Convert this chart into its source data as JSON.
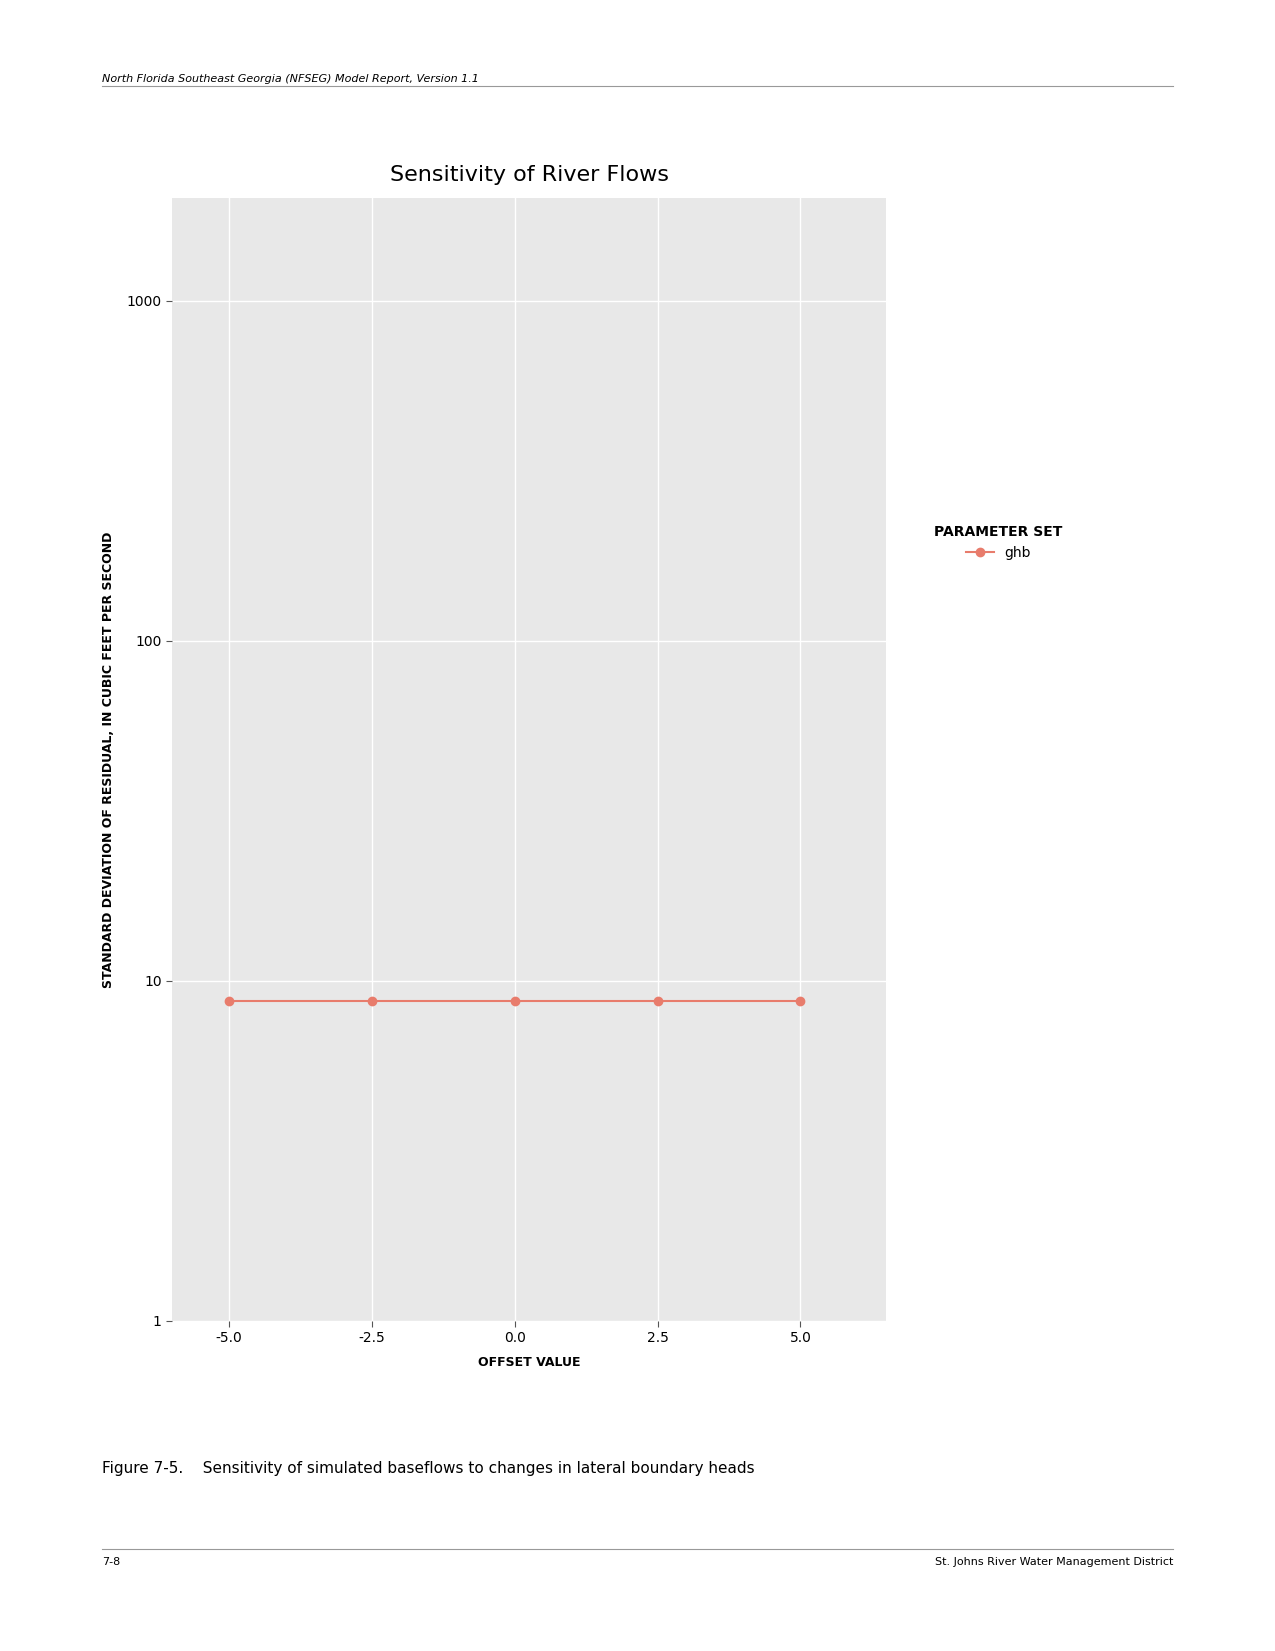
{
  "title": "Sensitivity of River Flows",
  "xlabel": "OFFSET VALUE",
  "ylabel": "STANDARD DEVIATION OF RESIDUAL, IN CUBIC FEET PER SECOND",
  "x_values": [
    -5.0,
    -2.5,
    0.0,
    2.5,
    5.0
  ],
  "y_values": [
    8.7,
    8.7,
    8.7,
    8.7,
    8.7
  ],
  "line_color": "#E87C6C",
  "marker_color": "#E87C6C",
  "marker_style": "o",
  "marker_size": 6,
  "line_width": 1.5,
  "ylim_log": [
    1,
    2000
  ],
  "yticks": [
    1,
    10,
    100,
    1000
  ],
  "xlim": [
    -6.0,
    6.5
  ],
  "xticks": [
    -5.0,
    -2.5,
    0.0,
    2.5,
    5.0
  ],
  "legend_title": "PARAMETER SET",
  "legend_label": "ghb",
  "bg_color": "#E8E8E8",
  "grid_color": "#FFFFFF",
  "title_fontsize": 16,
  "axis_label_fontsize": 9,
  "tick_fontsize": 10,
  "legend_fontsize": 10,
  "legend_title_fontsize": 10,
  "header_text": "North Florida Southeast Georgia (NFSEG) Model Report, Version 1.1",
  "caption_text": "Figure 7-5.    Sensitivity of simulated baseflows to changes in lateral boundary heads",
  "footer_left": "7-8",
  "footer_right": "St. Johns River Water Management District"
}
